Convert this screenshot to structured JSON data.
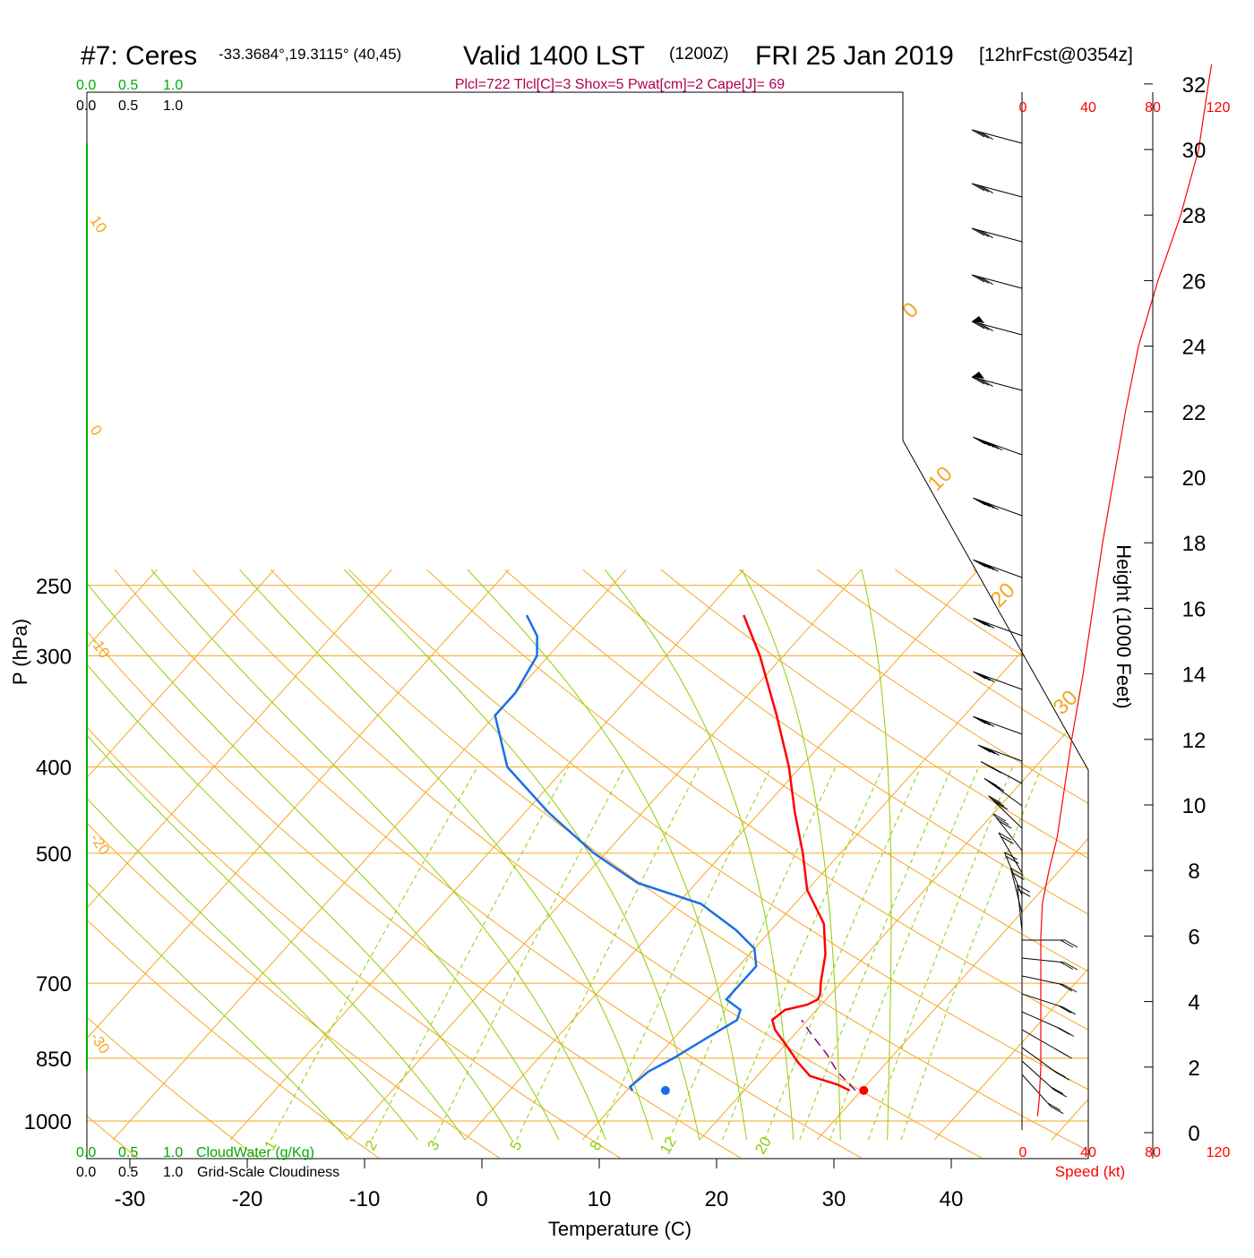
{
  "header": {
    "station": "#7: Ceres",
    "coords": "-33.3684°,19.3115° (40,45)",
    "valid": "Valid 1400 LST",
    "utc": "(1200Z)",
    "date": "FRI 25 Jan 2019",
    "forecast": "[12hrFcst@0354z]",
    "params": "Plcl=722 Tlcl[C]=3 Shox=5 Pwat[cm]=2 Cape[J]= 69"
  },
  "colors": {
    "temperature": "#ff0000",
    "dewpoint": "#1a6fe8",
    "parcel": "#800080",
    "isobar_isotherm_dryadiabat": "#f5a623",
    "moist_adiabat": "#8fce00",
    "mixing_ratio": "#8fce00",
    "params_text": "#b0004f",
    "cloud_water": "#00aa00",
    "wind_speed": "#ff0000"
  },
  "cloud_scales": {
    "top_green": [
      "0.0",
      "0.5",
      "1.0"
    ],
    "top_black": [
      "0.0",
      "0.5",
      "1.0"
    ],
    "bottom_green": [
      "0.0",
      "0.5",
      "1.0"
    ],
    "bottom_black": [
      "0.0",
      "0.5",
      "1.0"
    ],
    "cloud_water_label": "CloudWater (g/Kg)",
    "cloudiness_label": "Grid-Scale Cloudiness"
  },
  "speed_panel": {
    "ticks": [
      "0",
      "40",
      "80",
      "120"
    ],
    "label": "Speed (kt)",
    "range": [
      0,
      120
    ]
  },
  "chart_data": {
    "type": "skew-t",
    "xlabel": "Temperature (C)",
    "ylabel": "P (hPa)",
    "y2label": "Height (1000 Feet)",
    "x_ticks": [
      -30,
      -20,
      -10,
      0,
      10,
      20,
      30,
      40
    ],
    "x_tick_labels": [
      "-30",
      "-20",
      "-10",
      "0",
      "10",
      "20",
      "30",
      "40"
    ],
    "p_ticks": [
      250,
      300,
      400,
      500,
      700,
      850,
      1000
    ],
    "p_tick_labels": [
      "250",
      "300",
      "400",
      "500",
      "700",
      "850",
      "1000"
    ],
    "height_ticks": [
      0,
      2,
      4,
      6,
      8,
      10,
      12,
      14,
      16,
      18,
      20,
      22,
      24,
      26,
      28,
      30,
      32
    ],
    "height_tick_labels": [
      "0",
      "2",
      "4",
      "6",
      "8",
      "10",
      "12",
      "14",
      "16",
      "18",
      "20",
      "22",
      "24",
      "26",
      "28",
      "30",
      "32"
    ],
    "dry_adiabat_labels": [
      "10",
      "0",
      "-10",
      "-20",
      "-30"
    ],
    "upper_isotherm_labels": [
      "0",
      "10",
      "20",
      "30"
    ],
    "mixing_ratio_labels": [
      "1",
      "2",
      "3",
      "5",
      "8",
      "12",
      "20"
    ],
    "series": [
      {
        "name": "temperature",
        "points": [
          [
            924,
            29.0
          ],
          [
            910,
            27.5
          ],
          [
            890,
            24.5
          ],
          [
            860,
            22.5
          ],
          [
            820,
            20.0
          ],
          [
            790,
            18.0
          ],
          [
            770,
            17.0
          ],
          [
            750,
            17.3
          ],
          [
            740,
            18.8
          ],
          [
            730,
            19.3
          ],
          [
            720,
            19.1
          ],
          [
            700,
            18.3
          ],
          [
            650,
            16.5
          ],
          [
            600,
            14.0
          ],
          [
            550,
            10.0
          ],
          [
            500,
            6.8
          ],
          [
            450,
            3.0
          ],
          [
            400,
            -1.0
          ],
          [
            350,
            -6.0
          ],
          [
            300,
            -12.0
          ],
          [
            270,
            -16.5
          ]
        ]
      },
      {
        "name": "dewpoint",
        "points": [
          [
            924,
            10.5
          ],
          [
            915,
            10.0
          ],
          [
            880,
            10.4
          ],
          [
            850,
            11.5
          ],
          [
            800,
            13.0
          ],
          [
            770,
            14.0
          ],
          [
            750,
            13.5
          ],
          [
            730,
            11.5
          ],
          [
            700,
            11.5
          ],
          [
            670,
            11.5
          ],
          [
            640,
            10.0
          ],
          [
            610,
            7.0
          ],
          [
            570,
            2.0
          ],
          [
            540,
            -5.0
          ],
          [
            500,
            -11.0
          ],
          [
            450,
            -18.0
          ],
          [
            400,
            -25.0
          ],
          [
            350,
            -30.0
          ],
          [
            330,
            -30.0
          ],
          [
            300,
            -31.0
          ],
          [
            285,
            -32.5
          ],
          [
            270,
            -35.0
          ]
        ]
      },
      {
        "name": "parcel",
        "points": [
          [
            924,
            29.5
          ],
          [
            880,
            26.5
          ],
          [
            840,
            24.2
          ],
          [
            800,
            21.5
          ],
          [
            770,
            19.5
          ]
        ]
      }
    ],
    "surface_markers": {
      "temperature": [
        924,
        30.2
      ],
      "dewpoint": [
        924,
        13.3
      ]
    },
    "wind_speed_profile": [
      [
        0.5,
        9
      ],
      [
        1,
        10
      ],
      [
        2,
        11
      ],
      [
        3,
        11
      ],
      [
        4,
        11
      ],
      [
        5,
        11
      ],
      [
        6,
        11
      ],
      [
        7,
        12
      ],
      [
        7.5,
        14
      ],
      [
        8,
        16
      ],
      [
        9,
        21
      ],
      [
        10,
        24
      ],
      [
        12,
        30
      ],
      [
        14,
        37
      ],
      [
        16,
        43
      ],
      [
        18,
        49
      ],
      [
        20,
        56
      ],
      [
        22,
        63
      ],
      [
        24,
        71
      ],
      [
        26,
        83
      ],
      [
        28,
        97
      ],
      [
        30,
        108
      ],
      [
        32,
        114
      ],
      [
        32.6,
        116
      ]
    ]
  }
}
